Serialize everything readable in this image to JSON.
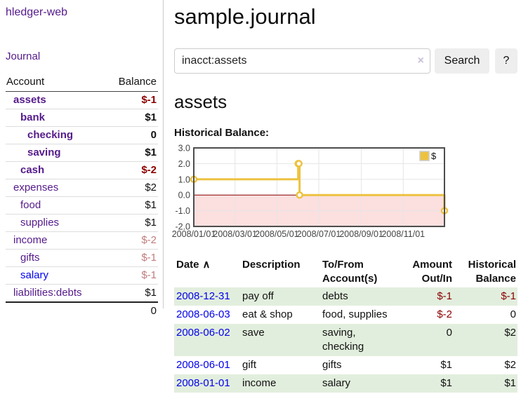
{
  "colors": {
    "link_purple": "#551a8b",
    "link_blue": "#0000ee",
    "negative": "#8b0000",
    "negative_pale": "#c07c7c",
    "row_stripe_green": "#e2eedd"
  },
  "sidebar": {
    "brand": "hledger-web",
    "nav_journal": "Journal",
    "accounts_table": {
      "headers": {
        "account": "Account",
        "balance": "Balance"
      },
      "rows": [
        {
          "label": "assets",
          "balance": "$-1",
          "indent": 0,
          "bold": true,
          "link_color": "purple",
          "balance_style": "negative"
        },
        {
          "label": "bank",
          "balance": "$1",
          "indent": 1,
          "bold": true,
          "link_color": "purple",
          "balance_style": "normal"
        },
        {
          "label": "checking",
          "balance": "0",
          "indent": 2,
          "bold": true,
          "link_color": "purple",
          "balance_style": "normal"
        },
        {
          "label": "saving",
          "balance": "$1",
          "indent": 2,
          "bold": true,
          "link_color": "purple",
          "balance_style": "normal"
        },
        {
          "label": "cash",
          "balance": "$-2",
          "indent": 1,
          "bold": true,
          "link_color": "purple",
          "balance_style": "negative"
        },
        {
          "label": "expenses",
          "balance": "$2",
          "indent": 0,
          "bold": false,
          "link_color": "purple",
          "balance_style": "normal"
        },
        {
          "label": "food",
          "balance": "$1",
          "indent": 1,
          "bold": false,
          "link_color": "purple",
          "balance_style": "normal"
        },
        {
          "label": "supplies",
          "balance": "$1",
          "indent": 1,
          "bold": false,
          "link_color": "purple",
          "balance_style": "normal"
        },
        {
          "label": "income",
          "balance": "$-2",
          "indent": 0,
          "bold": false,
          "link_color": "purple",
          "balance_style": "negative_pale"
        },
        {
          "label": "gifts",
          "balance": "$-1",
          "indent": 1,
          "bold": false,
          "link_color": "purple",
          "balance_style": "negative_pale"
        },
        {
          "label": "salary",
          "balance": "$-1",
          "indent": 1,
          "bold": false,
          "link_color": "blue",
          "balance_style": "negative_pale"
        },
        {
          "label": "liabilities:debts",
          "balance": "$1",
          "indent": 0,
          "bold": false,
          "link_color": "purple",
          "balance_style": "normal"
        }
      ],
      "total": "0"
    }
  },
  "main": {
    "title": "sample.journal",
    "search": {
      "value": "inacct:assets",
      "clear_icon": "×",
      "button": "Search",
      "help_button": "?"
    },
    "account_heading": "assets",
    "chart_title": "Historical Balance:"
  },
  "chart_data": {
    "type": "line",
    "step": true,
    "title": "Historical Balance",
    "series": [
      {
        "name": "$",
        "color": "#edc240",
        "points": [
          [
            "2008-01-01",
            1
          ],
          [
            "2008-06-01",
            2
          ],
          [
            "2008-06-02",
            2
          ],
          [
            "2008-06-03",
            0
          ],
          [
            "2008-12-31",
            -1
          ]
        ]
      }
    ],
    "xlim": [
      "2008-01-01",
      "2008-12-31"
    ],
    "ylim": [
      -2,
      3
    ],
    "y_ticks": [
      "3.0",
      "2.0",
      "1.0",
      "0.0",
      "-1.0",
      "-2.0"
    ],
    "x_ticks": [
      "2008/01/01",
      "2008/03/01",
      "2008/05/01",
      "2008/07/01",
      "2008/09/01",
      "2008/11/01"
    ],
    "legend": {
      "label": "$",
      "position": "top-right"
    },
    "grid": true,
    "colors": {
      "negative_region": "#fcdfdf",
      "zero_line": "#8b0000",
      "grid": "#e6e6e6",
      "border": "#4d4d4d",
      "tick_text": "#444"
    }
  },
  "register": {
    "headers": {
      "date": "Date",
      "sort_indicator": "∧",
      "description": "Description",
      "accounts": "To/From Account(s)",
      "amount": "Amount Out/In",
      "balance": "Historical Balance"
    },
    "rows": [
      {
        "date": "2008-12-31",
        "description": "pay off",
        "accounts": "debts",
        "amount": "$-1",
        "amount_negative": true,
        "balance": "$-1",
        "balance_negative": true
      },
      {
        "date": "2008-06-03",
        "description": "eat & shop",
        "accounts": "food, supplies",
        "amount": "$-2",
        "amount_negative": true,
        "balance": "0",
        "balance_negative": false
      },
      {
        "date": "2008-06-02",
        "description": "save",
        "accounts": "saving, checking",
        "amount": "0",
        "amount_negative": false,
        "balance": "$2",
        "balance_negative": false
      },
      {
        "date": "2008-06-01",
        "description": "gift",
        "accounts": "gifts",
        "amount": "$1",
        "amount_negative": false,
        "balance": "$2",
        "balance_negative": false
      },
      {
        "date": "2008-01-01",
        "description": "income",
        "accounts": "salary",
        "amount": "$1",
        "amount_negative": false,
        "balance": "$1",
        "balance_negative": false
      }
    ]
  }
}
